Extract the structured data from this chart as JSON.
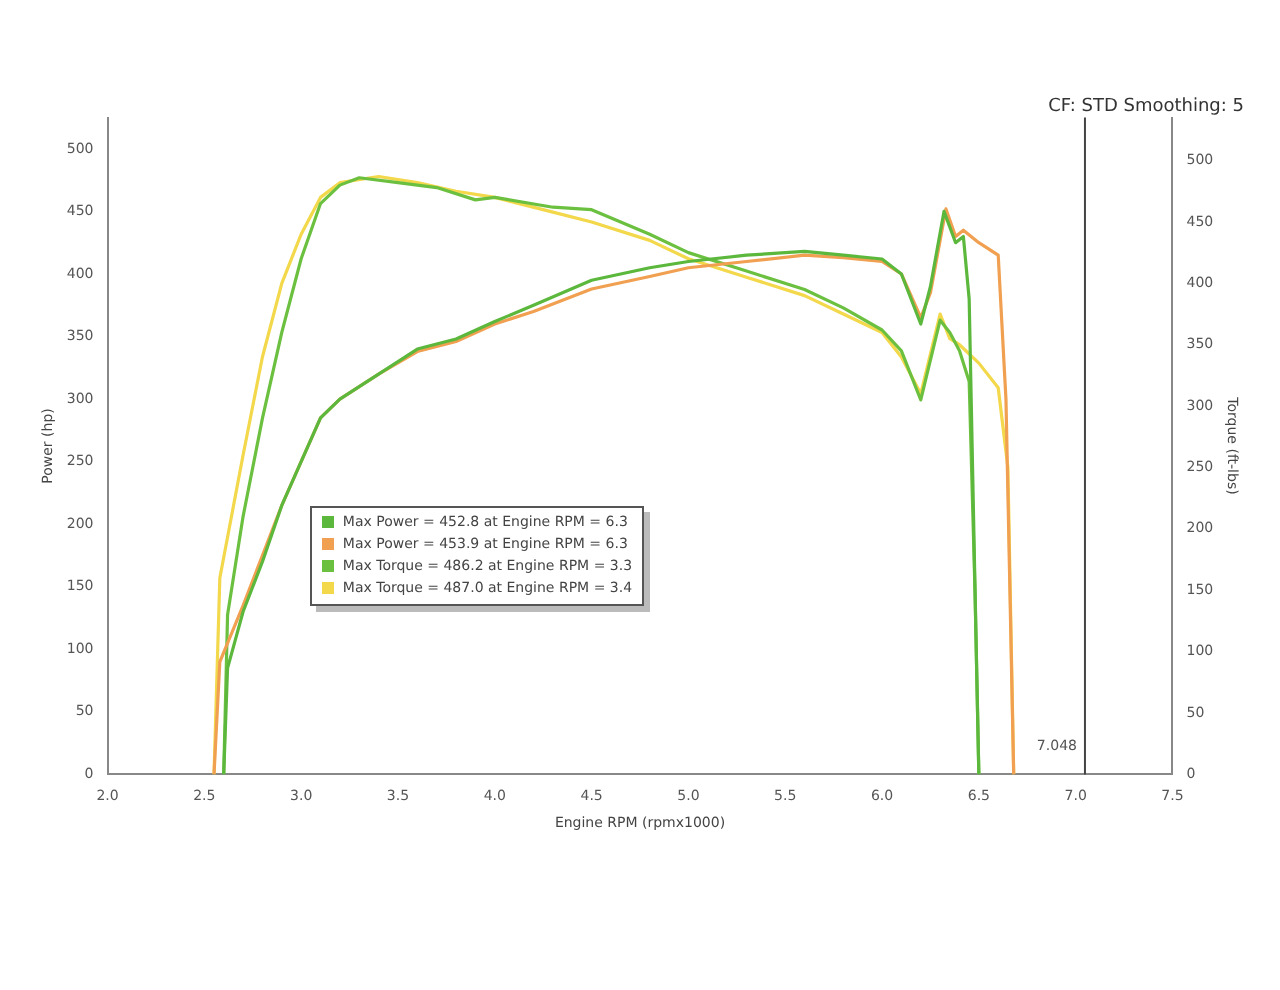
{
  "chart_data": {
    "type": "line",
    "subtitle": "CF: STD Smoothing: 5",
    "xlabel": "Engine RPM (rpmx1000)",
    "ylabel": "Power (hp)",
    "y2label": "Torque (ft-lbs)",
    "xlim": [
      2.0,
      7.5
    ],
    "xticks": [
      {
        "value": 2.0,
        "label": "2.0"
      },
      2.5,
      {
        "value": 3.0,
        "label": "3.0"
      },
      3.5,
      {
        "value": 4.0,
        "label": "4.0"
      },
      4.5,
      {
        "value": 5.0,
        "label": "5.0"
      },
      5.5,
      {
        "value": 6.0,
        "label": "6.0"
      },
      6.5,
      {
        "value": 7.0,
        "label": "7.0"
      },
      7.5
    ],
    "ylim": [
      0,
      525
    ],
    "yticks": [
      0,
      50,
      100,
      150,
      200,
      250,
      300,
      350,
      400,
      450,
      500
    ],
    "y2lim": [
      0,
      535
    ],
    "y2ticks": [
      0,
      50,
      100,
      150,
      200,
      250,
      300,
      350,
      400,
      450,
      500
    ],
    "grid": false,
    "legend": false,
    "marker": "none",
    "line_style": "solid",
    "ref_lines": [
      {
        "axis": "x",
        "value": 7.048,
        "label": "7.048",
        "color": "#444444"
      }
    ],
    "annotations": [
      "Max Power = 452.8 at Engine RPM = 6.3",
      "Max Power = 453.9 at Engine RPM = 6.3",
      "Max Torque = 486.2 at Engine RPM = 3.3",
      "Max Torque = 487.0 at Engine RPM = 3.4"
    ],
    "series": [
      {
        "color": "#5cb83c",
        "x": [
          2.6,
          2.62,
          2.7,
          2.8,
          2.9,
          3.0,
          3.1,
          3.2,
          3.4,
          3.6,
          3.8,
          4.0,
          4.2,
          4.5,
          4.8,
          5.0,
          5.3,
          5.6,
          5.8,
          6.0,
          6.1,
          6.2,
          6.25,
          6.32,
          6.38,
          6.42,
          6.45,
          6.48,
          6.5
        ],
        "values": [
          0,
          85,
          130,
          170,
          215,
          250,
          285,
          300,
          320,
          340,
          348,
          362,
          375,
          395,
          405,
          410,
          415,
          418,
          415,
          412,
          400,
          360,
          390,
          450,
          425,
          430,
          380,
          150,
          0
        ]
      },
      {
        "color": "#f0a050",
        "x": [
          2.55,
          2.58,
          2.7,
          2.8,
          2.9,
          3.0,
          3.1,
          3.2,
          3.4,
          3.6,
          3.8,
          4.0,
          4.2,
          4.5,
          4.8,
          5.0,
          5.3,
          5.6,
          5.8,
          6.0,
          6.1,
          6.2,
          6.25,
          6.33,
          6.38,
          6.42,
          6.5,
          6.6,
          6.64,
          6.68
        ],
        "values": [
          0,
          90,
          135,
          175,
          215,
          250,
          285,
          300,
          320,
          338,
          346,
          360,
          370,
          388,
          398,
          405,
          410,
          415,
          413,
          410,
          400,
          365,
          385,
          452,
          430,
          435,
          425,
          415,
          300,
          0
        ]
      },
      {
        "color": "#6cc040",
        "axis": "y2",
        "x": [
          2.6,
          2.62,
          2.7,
          2.8,
          2.9,
          3.0,
          3.1,
          3.2,
          3.3,
          3.5,
          3.7,
          3.9,
          4.0,
          4.3,
          4.5,
          4.8,
          5.0,
          5.3,
          5.6,
          5.8,
          6.0,
          6.1,
          6.2,
          6.3,
          6.35,
          6.4,
          6.45,
          6.48,
          6.5
        ],
        "values": [
          0,
          130,
          210,
          290,
          360,
          420,
          465,
          480,
          486,
          482,
          478,
          468,
          470,
          462,
          460,
          440,
          425,
          410,
          395,
          380,
          362,
          345,
          305,
          370,
          360,
          345,
          320,
          150,
          0
        ]
      },
      {
        "color": "#f2d84a",
        "axis": "y2",
        "x": [
          2.55,
          2.58,
          2.7,
          2.8,
          2.9,
          3.0,
          3.1,
          3.2,
          3.4,
          3.6,
          3.8,
          4.0,
          4.3,
          4.5,
          4.8,
          5.0,
          5.3,
          5.6,
          5.8,
          6.0,
          6.1,
          6.2,
          6.3,
          6.35,
          6.4,
          6.5,
          6.6,
          6.65,
          6.68
        ],
        "values": [
          0,
          160,
          260,
          340,
          400,
          440,
          470,
          482,
          487,
          482,
          475,
          470,
          458,
          450,
          435,
          420,
          405,
          390,
          375,
          360,
          340,
          310,
          375,
          355,
          350,
          335,
          315,
          250,
          0
        ]
      }
    ]
  }
}
